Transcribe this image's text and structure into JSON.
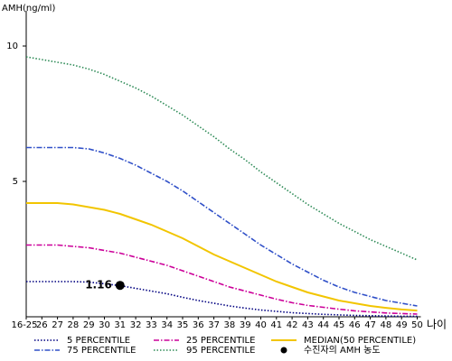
{
  "chart_data": {
    "type": "line",
    "y_label": "AMH(ng/ml)",
    "x_label": "나이",
    "categories": [
      "16-25",
      "26",
      "27",
      "28",
      "29",
      "30",
      "31",
      "32",
      "33",
      "34",
      "35",
      "36",
      "37",
      "38",
      "39",
      "40",
      "41",
      "42",
      "43",
      "44",
      "45",
      "46",
      "47",
      "48",
      "49",
      "50"
    ],
    "ylim": [
      0,
      11.3
    ],
    "yticks": [
      5,
      10
    ],
    "grid": false,
    "series": [
      {
        "name": "5 PERCENTILE",
        "color": "#000080",
        "dash": "dotted",
        "values": [
          1.3,
          1.3,
          1.3,
          1.3,
          1.28,
          1.22,
          1.15,
          1.05,
          0.95,
          0.85,
          0.72,
          0.6,
          0.5,
          0.4,
          0.32,
          0.25,
          0.2,
          0.15,
          0.12,
          0.09,
          0.07,
          0.05,
          0.04,
          0.03,
          0.02,
          0.02
        ]
      },
      {
        "name": "25 PERCENTILE",
        "color": "#cc0099",
        "dash": "dashdot",
        "values": [
          2.65,
          2.65,
          2.65,
          2.6,
          2.55,
          2.45,
          2.35,
          2.2,
          2.05,
          1.9,
          1.7,
          1.5,
          1.3,
          1.1,
          0.95,
          0.8,
          0.65,
          0.52,
          0.42,
          0.35,
          0.28,
          0.22,
          0.18,
          0.14,
          0.12,
          0.1
        ]
      },
      {
        "name": "MEDIAN(50 PERCENTILE)",
        "color": "#f2c500",
        "dash": "solid",
        "values": [
          4.2,
          4.2,
          4.2,
          4.15,
          4.05,
          3.95,
          3.8,
          3.6,
          3.4,
          3.15,
          2.9,
          2.6,
          2.3,
          2.05,
          1.8,
          1.55,
          1.3,
          1.1,
          0.9,
          0.75,
          0.6,
          0.5,
          0.4,
          0.33,
          0.27,
          0.23
        ]
      },
      {
        "name": "75 PERCENTILE",
        "color": "#3050c8",
        "dash": "dashdot",
        "values": [
          6.25,
          6.25,
          6.25,
          6.25,
          6.2,
          6.05,
          5.85,
          5.6,
          5.3,
          5.0,
          4.65,
          4.25,
          3.85,
          3.45,
          3.05,
          2.65,
          2.3,
          1.95,
          1.65,
          1.35,
          1.1,
          0.9,
          0.75,
          0.6,
          0.5,
          0.4
        ]
      },
      {
        "name": "95 PERCENTILE",
        "color": "#2e8b57",
        "dash": "dotted",
        "values": [
          9.6,
          9.5,
          9.4,
          9.3,
          9.15,
          8.95,
          8.7,
          8.45,
          8.15,
          7.8,
          7.45,
          7.05,
          6.65,
          6.2,
          5.8,
          5.35,
          4.95,
          4.55,
          4.15,
          3.8,
          3.45,
          3.15,
          2.85,
          2.6,
          2.35,
          2.1
        ]
      }
    ],
    "points": [
      {
        "name": "수진자의 AMH 농도",
        "x": "31",
        "value": 1.16,
        "color": "#000000"
      }
    ]
  }
}
